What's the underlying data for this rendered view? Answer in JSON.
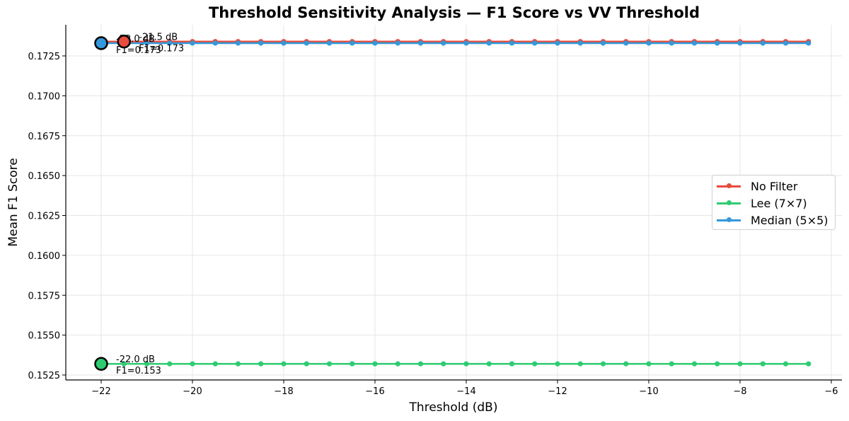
{
  "chart_data": {
    "type": "line",
    "title": "Threshold Sensitivity Analysis — F1 Score vs VV Threshold",
    "xlabel": "Threshold (dB)",
    "ylabel": "Mean F1 Score",
    "xlim": [
      -22.8,
      -5.8
    ],
    "ylim": [
      0.1521,
      0.1744
    ],
    "xticks": [
      -22,
      -20,
      -18,
      -16,
      -14,
      -12,
      -10,
      -8,
      -6
    ],
    "xtick_labels": [
      "−22",
      "−20",
      "−18",
      "−16",
      "−14",
      "−12",
      "−10",
      "−8",
      "−6"
    ],
    "yticks": [
      0.1525,
      0.155,
      0.1575,
      0.16,
      0.1625,
      0.165,
      0.1675,
      0.17,
      0.1725
    ],
    "ytick_labels": [
      "0.1525",
      "0.1550",
      "0.1575",
      "0.1600",
      "0.1625",
      "0.1650",
      "0.1675",
      "0.1700",
      "0.1725"
    ],
    "grid": true,
    "legend_position": "center right",
    "x": [
      -22.0,
      -21.5,
      -21.0,
      -20.5,
      -20.0,
      -19.5,
      -19.0,
      -18.5,
      -18.0,
      -17.5,
      -17.0,
      -16.5,
      -16.0,
      -15.5,
      -15.0,
      -14.5,
      -14.0,
      -13.5,
      -13.0,
      -12.5,
      -12.0,
      -11.5,
      -11.0,
      -10.5,
      -10.0,
      -9.5,
      -9.0,
      -8.5,
      -8.0,
      -7.5,
      -7.0,
      -6.5
    ],
    "series": [
      {
        "name": "No Filter",
        "color": "#e74c3c",
        "values": [
          0.1734,
          0.1734,
          0.1734,
          0.1734,
          0.1734,
          0.1734,
          0.1734,
          0.1734,
          0.1734,
          0.1734,
          0.1734,
          0.1734,
          0.1734,
          0.1734,
          0.1734,
          0.1734,
          0.1734,
          0.1734,
          0.1734,
          0.1734,
          0.1734,
          0.1734,
          0.1734,
          0.1734,
          0.1734,
          0.1734,
          0.1734,
          0.1734,
          0.1734,
          0.1734,
          0.1734,
          0.1734
        ],
        "best": {
          "x": -21.5,
          "y": 0.1734,
          "label_line1": "-21.5 dB",
          "label_line2": "F1=0.173"
        }
      },
      {
        "name": "Lee (7×7)",
        "color": "#2ecc71",
        "values": [
          0.1532,
          0.1532,
          0.1532,
          0.1532,
          0.1532,
          0.1532,
          0.1532,
          0.1532,
          0.1532,
          0.1532,
          0.1532,
          0.1532,
          0.1532,
          0.1532,
          0.1532,
          0.1532,
          0.1532,
          0.1532,
          0.1532,
          0.1532,
          0.1532,
          0.1532,
          0.1532,
          0.1532,
          0.1532,
          0.1532,
          0.1532,
          0.1532,
          0.1532,
          0.1532,
          0.1532,
          0.1532
        ],
        "best": {
          "x": -22.0,
          "y": 0.1532,
          "label_line1": "-22.0 dB",
          "label_line2": "F1=0.153"
        }
      },
      {
        "name": "Median (5×5)",
        "color": "#3498db",
        "values": [
          0.1733,
          0.1733,
          0.1733,
          0.1733,
          0.1733,
          0.1733,
          0.1733,
          0.1733,
          0.1733,
          0.1733,
          0.1733,
          0.1733,
          0.1733,
          0.1733,
          0.1733,
          0.1733,
          0.1733,
          0.1733,
          0.1733,
          0.1733,
          0.1733,
          0.1733,
          0.1733,
          0.1733,
          0.1733,
          0.1733,
          0.1733,
          0.1733,
          0.1733,
          0.1733,
          0.1733,
          0.1733
        ],
        "best": {
          "x": -22.0,
          "y": 0.1733,
          "label_line1": "-22.0 dB",
          "label_line2": "F1=0.173"
        }
      }
    ]
  },
  "legend": {
    "items": [
      {
        "label": "No Filter",
        "color": "#e74c3c"
      },
      {
        "label": "Lee (7×7)",
        "color": "#2ecc71"
      },
      {
        "label": "Median (5×5)",
        "color": "#3498db"
      }
    ]
  }
}
